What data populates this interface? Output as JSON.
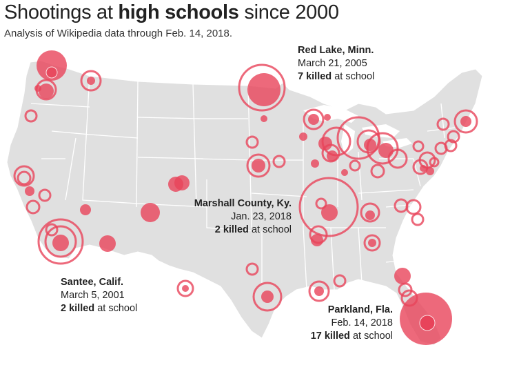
{
  "header": {
    "title_part1": "Shootings at ",
    "title_bold": "high schools",
    "title_part2": " since 2000",
    "subtitle": "Analysis of Wikipedia data through Feb. 14, 2018."
  },
  "colors": {
    "land": "#e0e0e0",
    "border": "#ffffff",
    "incident_fill": "#e8435a",
    "incident_ring": "#e8435a"
  },
  "callouts": [
    {
      "place": "Red Lake, Minn.",
      "date": "March 21, 2005",
      "killed_count": "7 killed",
      "killed_suffix": " at school"
    },
    {
      "place": "Marshall County, Ky.",
      "date": "Jan. 23, 2018",
      "killed_count": "2 killed",
      "killed_suffix": " at school"
    },
    {
      "place": "Santee, Calif.",
      "date": "March 5, 2001",
      "killed_count": "2 killed",
      "killed_suffix": " at school"
    },
    {
      "place": "Parkland, Fla.",
      "date": "Feb. 14, 2018",
      "killed_count": "17 killed",
      "killed_suffix": " at school"
    }
  ]
}
